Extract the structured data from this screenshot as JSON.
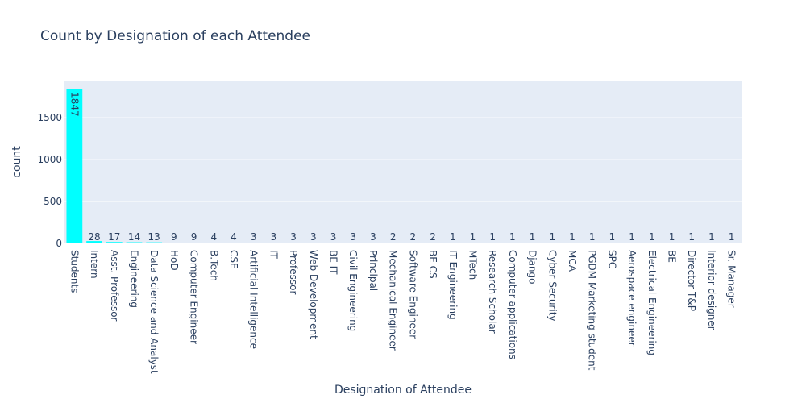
{
  "chart_data": {
    "type": "bar",
    "title": "Count by Designation of each Attendee",
    "xlabel": "Designation of Attendee",
    "ylabel": "count",
    "categories": [
      "Students",
      "Intern",
      "Asst. Professor",
      "Engineering",
      "Data Science and Analyst",
      "HoD",
      "Computer Engineer",
      "B.Tech",
      "CSE",
      "Artificial Intelligence",
      "IT",
      "Professor",
      "Web Development",
      "BE IT",
      "Civil Engineering",
      "Principal",
      "Mechanical Engineer",
      "Software Engineer",
      "BE CS",
      "IT Engineering",
      "MTech",
      "Research Scholar",
      "Computer applications",
      "Django",
      "Cyber Security",
      "MCA",
      "PGDM Marketing student",
      "SPC",
      "Aerospace engineer",
      "Electrical Engineering",
      "BE",
      "Director T&P",
      "Interior designer",
      "Sr. Manager"
    ],
    "values": [
      1847,
      28,
      17,
      14,
      13,
      9,
      9,
      4,
      4,
      3,
      3,
      3,
      3,
      3,
      3,
      3,
      2,
      2,
      2,
      1,
      1,
      1,
      1,
      1,
      1,
      1,
      1,
      1,
      1,
      1,
      1,
      1,
      1,
      1
    ],
    "ylim": [
      0,
      1944
    ],
    "yticks": [
      0,
      500,
      1000,
      1500
    ],
    "grid": true,
    "bar_color": "#00ffff",
    "plot_bg": "#e5ecf6"
  }
}
